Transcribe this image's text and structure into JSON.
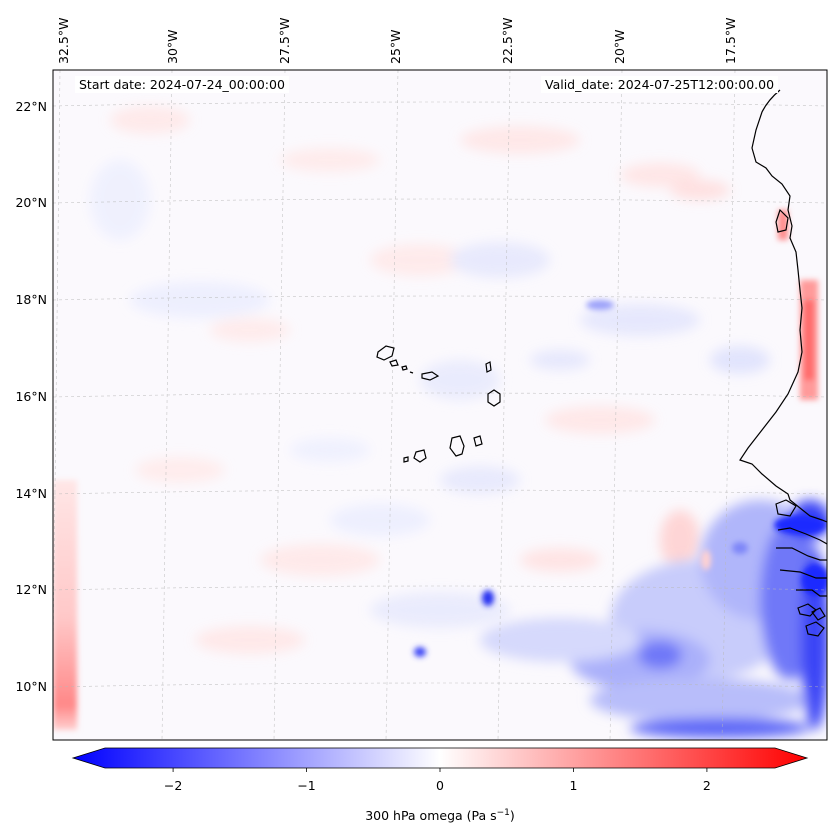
{
  "map": {
    "start_date_label": "Start date: 2024-07-24_00:00:00",
    "valid_date_label": "Valid_date: 2024-07-25T12:00:00.00",
    "lon_labels": [
      "32.5°W",
      "30°W",
      "27.5°W",
      "25°W",
      "22.5°W",
      "20°W",
      "17.5°W"
    ],
    "lat_labels": [
      "22°N",
      "20°N",
      "18°N",
      "16°N",
      "14°N",
      "12°N",
      "10°N"
    ],
    "colors": {
      "negative": "#0000ff",
      "neutral": "#ffffff",
      "positive": "#ff0000",
      "coast": "#000000",
      "grid": "#b0b0b0"
    }
  },
  "colorbar": {
    "label": "300 hPa omega (Pa s",
    "label_sup": "−1",
    "label_close": ")",
    "ticks": [
      "−2",
      "−1",
      "0",
      "1",
      "2"
    ],
    "tick_values": [
      -2,
      -1,
      0,
      1,
      2
    ],
    "range": [
      -2.75,
      2.75
    ],
    "cmap": "bwr"
  },
  "chart_data": {
    "type": "heatmap",
    "variable": "300 hPa omega",
    "units": "Pa s−1",
    "vmin": -2.75,
    "vmax": 2.75,
    "lon_range": [
      -32.8,
      -15.3
    ],
    "lat_range": [
      8.9,
      22.8
    ],
    "lon_ticks": [
      -32.5,
      -30,
      -27.5,
      -25,
      -22.5,
      -20,
      -17.5
    ],
    "lat_ticks": [
      22,
      20,
      18,
      16,
      14,
      12,
      10
    ]
  }
}
